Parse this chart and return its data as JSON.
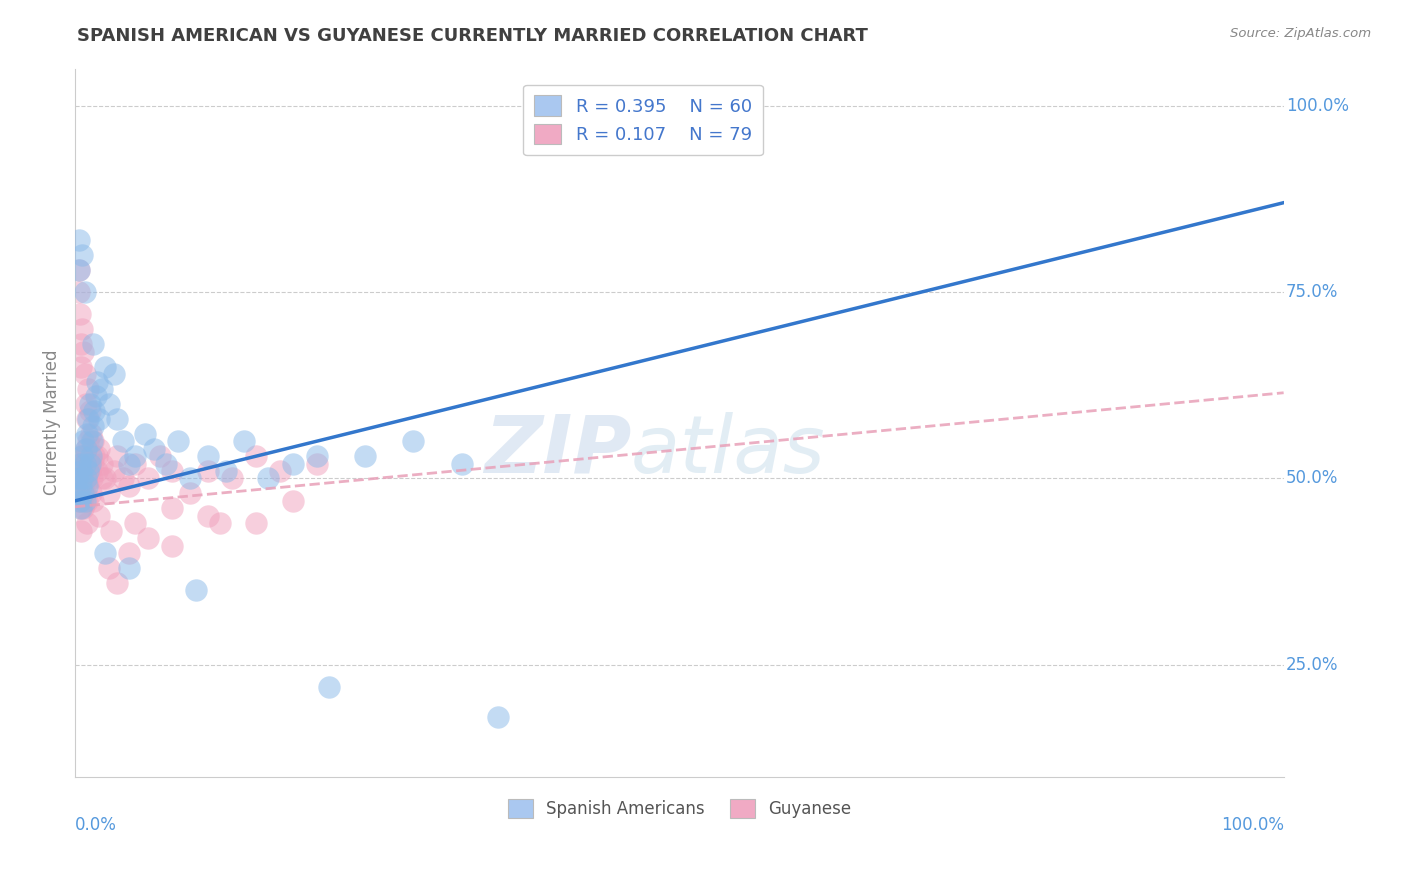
{
  "title": "SPANISH AMERICAN VS GUYANESE CURRENTLY MARRIED CORRELATION CHART",
  "source": "Source: ZipAtlas.com",
  "xlabel_bottom_left": "0.0%",
  "xlabel_bottom_right": "100.0%",
  "ylabel": "Currently Married",
  "y_tick_labels": [
    "25.0%",
    "50.0%",
    "75.0%",
    "100.0%"
  ],
  "y_tick_positions": [
    0.25,
    0.5,
    0.75,
    1.0
  ],
  "x_range": [
    0.0,
    1.0
  ],
  "y_range": [
    0.1,
    1.05
  ],
  "legend_blue_label": "R = 0.395    N = 60",
  "legend_pink_label": "R = 0.107    N = 79",
  "legend_blue_color": "#aac8f0",
  "legend_pink_color": "#f0aac4",
  "blue_R": 0.395,
  "blue_N": 60,
  "pink_R": 0.107,
  "pink_N": 79,
  "watermark_part1": "ZIP",
  "watermark_part2": "atlas",
  "scatter_blue_color": "#88b8e8",
  "scatter_pink_color": "#f0a0bc",
  "trend_blue_color": "#3377cc",
  "trend_blue_start_y": 0.47,
  "trend_blue_end_y": 0.87,
  "trend_pink_color": "#e8a0b8",
  "trend_pink_start_y": 0.462,
  "trend_pink_end_y": 0.615,
  "background_color": "#ffffff",
  "grid_color": "#cccccc",
  "legend_text_color": "#4477cc",
  "title_color": "#404040",
  "axis_label_color": "#888888",
  "bottom_legend_blue_label": "Spanish Americans",
  "bottom_legend_pink_label": "Guyanese",
  "blue_x": [
    0.002,
    0.003,
    0.004,
    0.004,
    0.005,
    0.005,
    0.005,
    0.006,
    0.006,
    0.007,
    0.007,
    0.008,
    0.008,
    0.009,
    0.009,
    0.01,
    0.01,
    0.011,
    0.011,
    0.012,
    0.012,
    0.013,
    0.014,
    0.015,
    0.016,
    0.017,
    0.018,
    0.02,
    0.022,
    0.025,
    0.028,
    0.032,
    0.035,
    0.04,
    0.045,
    0.05,
    0.058,
    0.065,
    0.075,
    0.085,
    0.095,
    0.11,
    0.125,
    0.14,
    0.16,
    0.18,
    0.2,
    0.24,
    0.28,
    0.32,
    0.003,
    0.003,
    0.006,
    0.008,
    0.015,
    0.025,
    0.045,
    0.1,
    0.21,
    0.35
  ],
  "blue_y": [
    0.5,
    0.48,
    0.52,
    0.47,
    0.49,
    0.51,
    0.46,
    0.5,
    0.53,
    0.48,
    0.55,
    0.47,
    0.52,
    0.5,
    0.54,
    0.49,
    0.56,
    0.51,
    0.58,
    0.52,
    0.6,
    0.53,
    0.55,
    0.57,
    0.59,
    0.61,
    0.63,
    0.58,
    0.62,
    0.65,
    0.6,
    0.64,
    0.58,
    0.55,
    0.52,
    0.53,
    0.56,
    0.54,
    0.52,
    0.55,
    0.5,
    0.53,
    0.51,
    0.55,
    0.5,
    0.52,
    0.53,
    0.53,
    0.55,
    0.52,
    0.82,
    0.78,
    0.8,
    0.75,
    0.68,
    0.4,
    0.38,
    0.35,
    0.22,
    0.18
  ],
  "pink_x": [
    0.002,
    0.002,
    0.003,
    0.003,
    0.004,
    0.004,
    0.004,
    0.005,
    0.005,
    0.005,
    0.006,
    0.006,
    0.007,
    0.007,
    0.008,
    0.008,
    0.009,
    0.009,
    0.01,
    0.01,
    0.011,
    0.011,
    0.012,
    0.013,
    0.014,
    0.015,
    0.016,
    0.018,
    0.02,
    0.022,
    0.025,
    0.028,
    0.032,
    0.035,
    0.04,
    0.045,
    0.05,
    0.06,
    0.07,
    0.08,
    0.095,
    0.11,
    0.13,
    0.15,
    0.17,
    0.2,
    0.003,
    0.003,
    0.004,
    0.005,
    0.005,
    0.006,
    0.007,
    0.008,
    0.009,
    0.01,
    0.011,
    0.012,
    0.013,
    0.015,
    0.018,
    0.022,
    0.028,
    0.035,
    0.045,
    0.06,
    0.08,
    0.11,
    0.15,
    0.005,
    0.007,
    0.01,
    0.015,
    0.02,
    0.03,
    0.05,
    0.08,
    0.12,
    0.18
  ],
  "pink_y": [
    0.48,
    0.5,
    0.47,
    0.51,
    0.49,
    0.52,
    0.46,
    0.5,
    0.48,
    0.53,
    0.47,
    0.52,
    0.49,
    0.51,
    0.48,
    0.53,
    0.5,
    0.54,
    0.47,
    0.52,
    0.49,
    0.55,
    0.51,
    0.48,
    0.5,
    0.52,
    0.53,
    0.51,
    0.54,
    0.52,
    0.5,
    0.48,
    0.51,
    0.53,
    0.5,
    0.49,
    0.52,
    0.5,
    0.53,
    0.51,
    0.48,
    0.51,
    0.5,
    0.53,
    0.51,
    0.52,
    0.78,
    0.75,
    0.72,
    0.68,
    0.65,
    0.7,
    0.67,
    0.64,
    0.6,
    0.58,
    0.62,
    0.59,
    0.56,
    0.55,
    0.53,
    0.5,
    0.38,
    0.36,
    0.4,
    0.42,
    0.41,
    0.45,
    0.44,
    0.43,
    0.46,
    0.44,
    0.47,
    0.45,
    0.43,
    0.44,
    0.46,
    0.44,
    0.47
  ]
}
